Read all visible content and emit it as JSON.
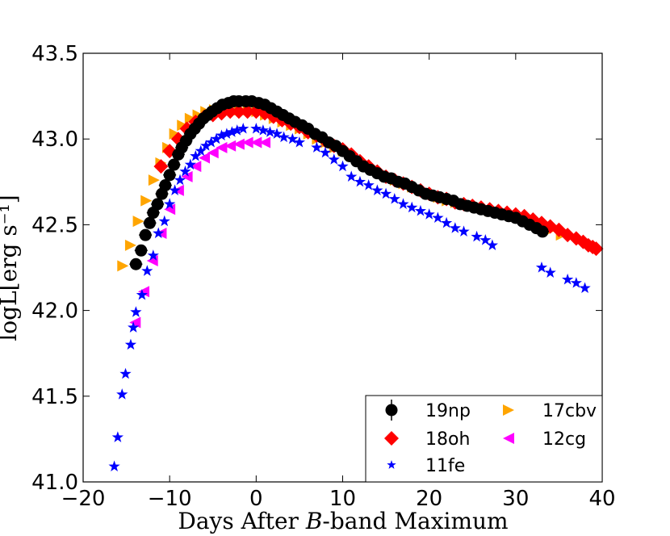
{
  "chart_data": {
    "type": "scatter",
    "title": "",
    "xlabel_parts": [
      "Days After ",
      "B",
      "-band Maximum"
    ],
    "ylabel": "logL[erg s⁻¹]",
    "xlim": [
      -20,
      40
    ],
    "ylim": [
      41.0,
      43.5
    ],
    "xticks": [
      -20,
      -10,
      0,
      10,
      20,
      30,
      40
    ],
    "xtick_labels": [
      "−20",
      "−10",
      "0",
      "10",
      "20",
      "30",
      "40"
    ],
    "yticks": [
      41.0,
      41.5,
      42.0,
      42.5,
      43.0,
      43.5
    ],
    "ytick_labels": [
      "41.0",
      "41.5",
      "42.0",
      "42.5",
      "43.0",
      "43.5"
    ],
    "grid": false,
    "legend_position": "lower-right",
    "series": [
      {
        "name": "17cbv",
        "marker": "triangle-right",
        "color": "#FFA500",
        "points": [
          [
            -15.4,
            42.26
          ],
          [
            -14.5,
            42.38
          ],
          [
            -13.6,
            42.52
          ],
          [
            -12.7,
            42.64
          ],
          [
            -11.8,
            42.76
          ],
          [
            -11.0,
            42.86
          ],
          [
            -10.2,
            42.95
          ],
          [
            -9.4,
            43.03
          ],
          [
            -8.5,
            43.08
          ],
          [
            -7.6,
            43.12
          ],
          [
            -6.7,
            43.14
          ],
          [
            -5.8,
            43.16
          ],
          [
            -4.8,
            43.17
          ],
          [
            -3.9,
            43.17
          ],
          [
            -2.9,
            43.17
          ],
          [
            -1.9,
            43.17
          ],
          [
            -0.9,
            43.17
          ],
          [
            0.1,
            43.16
          ],
          [
            1.1,
            43.14
          ],
          [
            2.1,
            43.12
          ],
          [
            3.1,
            43.1
          ],
          [
            4.1,
            43.08
          ],
          [
            5.1,
            43.06
          ],
          [
            6.1,
            43.03
          ],
          [
            7.1,
            43.0
          ],
          [
            8.1,
            42.98
          ],
          [
            9.1,
            42.95
          ],
          [
            10.1,
            42.93
          ],
          [
            11.1,
            42.9
          ],
          [
            12.1,
            42.87
          ],
          [
            13.1,
            42.84
          ],
          [
            14.1,
            42.81
          ],
          [
            15.1,
            42.78
          ],
          [
            16.1,
            42.76
          ],
          [
            17.1,
            42.74
          ],
          [
            18.1,
            42.72
          ],
          [
            19.1,
            42.7
          ],
          [
            20.1,
            42.68
          ],
          [
            21.1,
            42.66
          ],
          [
            22.1,
            42.64
          ],
          [
            23.1,
            42.63
          ],
          [
            24.1,
            42.62
          ],
          [
            25.1,
            42.61
          ],
          [
            26.1,
            42.6
          ],
          [
            27.1,
            42.58
          ],
          [
            28.1,
            42.57
          ],
          [
            29.1,
            42.56
          ],
          [
            30.1,
            42.55
          ],
          [
            31.1,
            42.53
          ],
          [
            32.1,
            42.51
          ],
          [
            33.1,
            42.49
          ],
          [
            34.1,
            42.47
          ],
          [
            35.3,
            42.44
          ]
        ]
      },
      {
        "name": "18oh",
        "marker": "diamond",
        "color": "#FF0000",
        "points": [
          [
            -11.0,
            42.84
          ],
          [
            -10.0,
            42.93
          ],
          [
            -9.0,
            43.0
          ],
          [
            -8.0,
            43.06
          ],
          [
            -7.0,
            43.1
          ],
          [
            -6.0,
            43.13
          ],
          [
            -5.0,
            43.14
          ],
          [
            -4.0,
            43.15
          ],
          [
            -3.0,
            43.16
          ],
          [
            -2.0,
            43.16
          ],
          [
            -1.0,
            43.16
          ],
          [
            0.0,
            43.16
          ],
          [
            1.0,
            43.15
          ],
          [
            2.0,
            43.13
          ],
          [
            3.0,
            43.11
          ],
          [
            4.0,
            43.09
          ],
          [
            5.0,
            43.07
          ],
          [
            6.0,
            43.04
          ],
          [
            7.0,
            43.02
          ],
          [
            8.0,
            42.99
          ],
          [
            9.0,
            42.96
          ],
          [
            10.0,
            42.94
          ],
          [
            11.0,
            42.91
          ],
          [
            12.0,
            42.87
          ],
          [
            13.0,
            42.84
          ],
          [
            14.0,
            42.81
          ],
          [
            15.0,
            42.78
          ],
          [
            16.0,
            42.76
          ],
          [
            17.0,
            42.74
          ],
          [
            18.0,
            42.72
          ],
          [
            19.0,
            42.7
          ],
          [
            20.0,
            42.68
          ],
          [
            21.0,
            42.66
          ],
          [
            22.0,
            42.65
          ],
          [
            23.0,
            42.63
          ],
          [
            24.0,
            42.62
          ],
          [
            25.0,
            42.61
          ],
          [
            26.0,
            42.6
          ],
          [
            27.0,
            42.59
          ],
          [
            28.0,
            42.58
          ],
          [
            29.0,
            42.57
          ],
          [
            30.0,
            42.56
          ],
          [
            31.0,
            42.55
          ],
          [
            32.0,
            42.53
          ],
          [
            33.0,
            42.51
          ],
          [
            34.0,
            42.49
          ],
          [
            35.0,
            42.47
          ],
          [
            36.0,
            42.44
          ],
          [
            37.0,
            42.42
          ],
          [
            37.8,
            42.4
          ],
          [
            38.4,
            42.38
          ],
          [
            38.9,
            42.37
          ],
          [
            39.3,
            42.36
          ]
        ]
      },
      {
        "name": "12cg",
        "marker": "triangle-left",
        "color": "#FF00FF",
        "points": [
          [
            -14.0,
            41.93
          ],
          [
            -13.0,
            42.11
          ],
          [
            -12.0,
            42.29
          ],
          [
            -11.0,
            42.45
          ],
          [
            -10.0,
            42.59
          ],
          [
            -9.0,
            42.7
          ],
          [
            -8.0,
            42.78
          ],
          [
            -7.0,
            42.84
          ],
          [
            -6.0,
            42.89
          ],
          [
            -5.0,
            42.92
          ],
          [
            -4.0,
            42.95
          ],
          [
            -3.0,
            42.96
          ],
          [
            -2.0,
            42.97
          ],
          [
            -1.0,
            42.98
          ],
          [
            0.0,
            42.98
          ],
          [
            1.0,
            42.98
          ]
        ]
      },
      {
        "name": "11fe",
        "marker": "star",
        "color": "#0000FF",
        "points": [
          [
            -16.4,
            41.09
          ],
          [
            -16.0,
            41.26
          ],
          [
            -15.5,
            41.51
          ],
          [
            -15.1,
            41.63
          ],
          [
            -14.5,
            41.8
          ],
          [
            -14.2,
            41.9
          ],
          [
            -13.9,
            41.99
          ],
          [
            -13.2,
            42.09
          ],
          [
            -12.6,
            42.23
          ],
          [
            -11.9,
            42.32
          ],
          [
            -11.3,
            42.45
          ],
          [
            -10.6,
            42.52
          ],
          [
            -10.0,
            42.62
          ],
          [
            -9.4,
            42.7
          ],
          [
            -8.8,
            42.76
          ],
          [
            -8.2,
            42.81
          ],
          [
            -7.6,
            42.85
          ],
          [
            -7.0,
            42.9
          ],
          [
            -6.4,
            42.93
          ],
          [
            -5.8,
            42.96
          ],
          [
            -5.2,
            42.98
          ],
          [
            -4.6,
            43.0
          ],
          [
            -4.0,
            43.02
          ],
          [
            -3.4,
            43.03
          ],
          [
            -2.8,
            43.04
          ],
          [
            -2.2,
            43.05
          ],
          [
            -1.5,
            43.06
          ],
          [
            0.0,
            43.06
          ],
          [
            0.8,
            43.05
          ],
          [
            1.6,
            43.04
          ],
          [
            2.4,
            43.03
          ],
          [
            3.2,
            43.01
          ],
          [
            4.2,
            43.0
          ],
          [
            5.0,
            42.98
          ],
          [
            7.0,
            42.95
          ],
          [
            8.0,
            42.92
          ],
          [
            9.0,
            42.88
          ],
          [
            10.0,
            42.84
          ],
          [
            11.0,
            42.78
          ],
          [
            12.0,
            42.75
          ],
          [
            13.0,
            42.73
          ],
          [
            14.0,
            42.7
          ],
          [
            15.0,
            42.68
          ],
          [
            16.0,
            42.65
          ],
          [
            17.0,
            42.62
          ],
          [
            18.0,
            42.6
          ],
          [
            19.0,
            42.58
          ],
          [
            20.0,
            42.56
          ],
          [
            21.0,
            42.54
          ],
          [
            22.0,
            42.51
          ],
          [
            23.0,
            42.48
          ],
          [
            24.0,
            42.46
          ],
          [
            25.5,
            42.43
          ],
          [
            26.5,
            42.41
          ],
          [
            27.3,
            42.38
          ],
          [
            33.0,
            42.25
          ],
          [
            34.0,
            42.22
          ],
          [
            36.0,
            42.18
          ],
          [
            37.0,
            42.16
          ],
          [
            38.0,
            42.13
          ]
        ]
      },
      {
        "name": "19np",
        "marker": "circle",
        "color": "#000000",
        "errorbars": true,
        "points": [
          [
            -13.9,
            42.27
          ],
          [
            -13.3,
            42.35
          ],
          [
            -12.8,
            42.44
          ],
          [
            -12.3,
            42.51
          ],
          [
            -11.9,
            42.57
          ],
          [
            -11.4,
            42.62
          ],
          [
            -10.9,
            42.68
          ],
          [
            -10.5,
            42.73
          ],
          [
            -10.0,
            42.79
          ],
          [
            -9.5,
            42.85
          ],
          [
            -9.0,
            42.91
          ],
          [
            -8.6,
            42.95
          ],
          [
            -8.1,
            42.99
          ],
          [
            -7.6,
            43.03
          ],
          [
            -7.1,
            43.06
          ],
          [
            -6.6,
            43.09
          ],
          [
            -6.1,
            43.12
          ],
          [
            -5.6,
            43.14
          ],
          [
            -5.1,
            43.16
          ],
          [
            -4.5,
            43.18
          ],
          [
            -3.9,
            43.2
          ],
          [
            -3.2,
            43.21
          ],
          [
            -2.6,
            43.22
          ],
          [
            -2.0,
            43.22
          ],
          [
            -1.2,
            43.22
          ],
          [
            -0.5,
            43.22
          ],
          [
            0.3,
            43.21
          ],
          [
            1.0,
            43.2
          ],
          [
            1.7,
            43.18
          ],
          [
            2.4,
            43.16
          ],
          [
            3.1,
            43.14
          ],
          [
            3.8,
            43.12
          ],
          [
            4.5,
            43.1
          ],
          [
            5.3,
            43.08
          ],
          [
            6.0,
            43.06
          ],
          [
            6.8,
            43.03
          ],
          [
            7.6,
            43.01
          ],
          [
            8.4,
            42.98
          ],
          [
            9.2,
            42.96
          ],
          [
            10.0,
            42.93
          ],
          [
            10.8,
            42.9
          ],
          [
            11.6,
            42.87
          ],
          [
            12.4,
            42.84
          ],
          [
            13.2,
            42.82
          ],
          [
            14.0,
            42.8
          ],
          [
            14.8,
            42.78
          ],
          [
            15.6,
            42.77
          ],
          [
            16.4,
            42.75
          ],
          [
            17.2,
            42.74
          ],
          [
            18.0,
            42.72
          ],
          [
            18.8,
            42.7
          ],
          [
            19.6,
            42.68
          ],
          [
            20.4,
            42.67
          ],
          [
            21.2,
            42.66
          ],
          [
            22.0,
            42.65
          ],
          [
            22.8,
            42.64
          ],
          [
            23.6,
            42.62
          ],
          [
            24.4,
            42.61
          ],
          [
            25.2,
            42.6
          ],
          [
            26.0,
            42.59
          ],
          [
            26.8,
            42.58
          ],
          [
            27.6,
            42.57
          ],
          [
            28.4,
            42.56
          ],
          [
            29.2,
            42.55
          ],
          [
            30.0,
            42.54
          ],
          [
            30.8,
            42.52
          ],
          [
            31.6,
            42.5
          ],
          [
            32.4,
            42.48
          ],
          [
            33.1,
            42.46
          ]
        ]
      }
    ],
    "legend": [
      {
        "name": "19np",
        "marker": "circle",
        "color": "#000000"
      },
      {
        "name": "17cbv",
        "marker": "triangle-right",
        "color": "#FFA500"
      },
      {
        "name": "18oh",
        "marker": "diamond",
        "color": "#FF0000"
      },
      {
        "name": "12cg",
        "marker": "triangle-left",
        "color": "#FF00FF"
      },
      {
        "name": "11fe",
        "marker": "star",
        "color": "#0000FF"
      }
    ]
  }
}
